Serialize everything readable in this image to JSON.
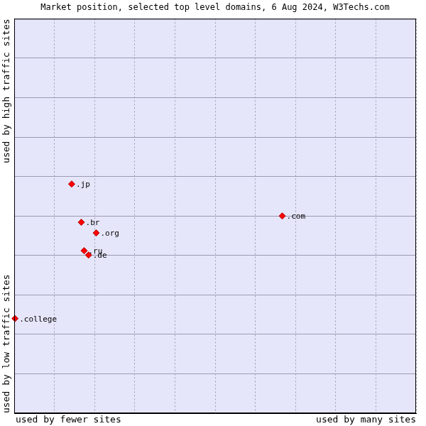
{
  "chart_data": {
    "type": "scatter",
    "title": "Market position, selected top level domains, 6 Aug 2024, W3Techs.com",
    "x_axis_labels": [
      "used by fewer sites",
      "used by many sites"
    ],
    "y_axis_labels": [
      "used by low traffic sites",
      "used by high traffic sites"
    ],
    "categories": [
      ".jp",
      ".com",
      ".br",
      ".org",
      ".ru",
      ".de",
      ".college"
    ],
    "x": [
      14.3,
      66.7,
      16.7,
      20.4,
      17.4,
      18.5,
      0.2
    ],
    "values": [
      58.1,
      50.0,
      48.4,
      45.7,
      41.2,
      40.1,
      24.0
    ],
    "color": "#ff0000",
    "marker": "diamond",
    "xlim": [
      0,
      100
    ],
    "xticks": [
      0,
      10,
      20,
      30,
      40,
      50,
      60,
      70,
      80,
      90,
      100
    ],
    "ylim": [
      0,
      100
    ],
    "yticks": [
      0,
      10,
      20,
      30,
      40,
      50,
      60,
      70,
      80,
      90,
      100
    ],
    "grid": true,
    "tick_labels": false
  }
}
